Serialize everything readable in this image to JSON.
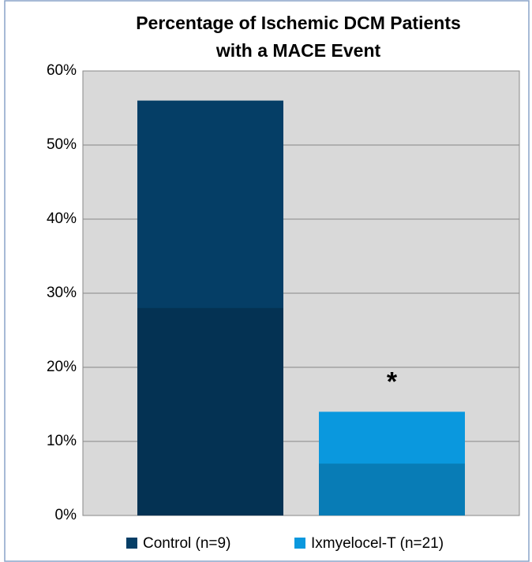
{
  "chart_data": {
    "type": "bar",
    "title": "Percentage of Ischemic DCM Patients",
    "subtitle": "with a MACE Event",
    "categories": [
      null
    ],
    "series": [
      {
        "name": "Control (n=9)",
        "color": "#053e66",
        "values": [
          56
        ]
      },
      {
        "name": "Ixmyelocel-T (n=21)",
        "color": "#0a98de",
        "values": [
          14
        ]
      }
    ],
    "annotation": "*",
    "ylim": [
      0,
      60
    ],
    "yticks": [
      {
        "value": 0,
        "label": "0%"
      },
      {
        "value": 10,
        "label": "10%"
      },
      {
        "value": 20,
        "label": "20%"
      },
      {
        "value": 30,
        "label": "30%"
      },
      {
        "value": 40,
        "label": "40%"
      },
      {
        "value": 50,
        "label": "50%"
      },
      {
        "value": 60,
        "label": "60%"
      }
    ],
    "grid": true,
    "legend": "bottom"
  }
}
